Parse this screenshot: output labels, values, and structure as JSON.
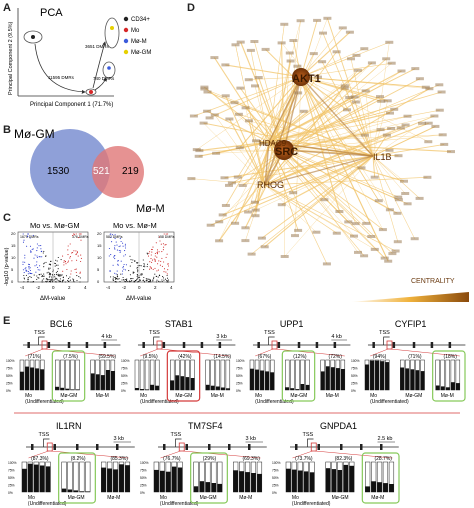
{
  "panel_letters": {
    "a": "A",
    "b": "B",
    "c": "C",
    "d": "D",
    "e": "E"
  },
  "pca": {
    "title": "PCA",
    "xlabel": "Principal Component 1 (71.7%)",
    "ylabel": "Principal Component 2 (9.5%)",
    "legend": [
      {
        "label": "CD34+",
        "color": "#222222"
      },
      {
        "label": "Mo",
        "color": "#d62728"
      },
      {
        "label": "Mø-M",
        "color": "#3b5bdb"
      },
      {
        "label": "Mø-GM",
        "color": "#e6d000"
      }
    ],
    "arrow_labels": [
      "11595 DMRs",
      "3651 DMRs",
      "740 DMRs"
    ]
  },
  "venn": {
    "left_label": "Mø-GM",
    "right_label": "Mø-M",
    "left_only": "1530",
    "overlap": "521",
    "right_only": "219",
    "left_color": "#7b8fd1",
    "right_color": "#e07777"
  },
  "volcano": {
    "plots": [
      {
        "title": "Mo vs. Mø-GM",
        "left_count": "1675 DMRs",
        "right_count": "376 DMRs"
      },
      {
        "title": "Mo vs. Mø-M",
        "left_count": "582 DMRs",
        "right_count": "158 DMRs"
      }
    ],
    "xlabel": "ΔM-value",
    "ylabel": "-log10 (p-value)",
    "xticks": [
      "-4",
      "-2",
      "0",
      "2",
      "4"
    ],
    "yticks": [
      "0",
      "5",
      "10",
      "15",
      "20"
    ]
  },
  "network": {
    "hubs": [
      {
        "label": "AKT1"
      },
      {
        "label": "SRC"
      },
      {
        "label": "HDAC9"
      },
      {
        "label": "RHOG"
      },
      {
        "label": "IL1B"
      }
    ],
    "centrality_label": "CENTRALITY",
    "edge_color": "#f2c46a"
  },
  "genes": {
    "row1": [
      {
        "name": "BCL6",
        "scale": "4 kb",
        "tss": "TSS",
        "values": [
          "(71%)",
          "(7.5%)",
          "(59.5%)"
        ],
        "highlight": 1,
        "hl_color": "#86c95a"
      },
      {
        "name": "STAB1",
        "scale": "3 kb",
        "tss": "TSS",
        "values": [
          "(9.5%)",
          "(42%)",
          "(14.5%)"
        ],
        "highlight": 1,
        "hl_color": "#d43a3a"
      },
      {
        "name": "UPP1",
        "scale": "4 kb",
        "tss": "TSS",
        "values": [
          "(67%)",
          "(12%)",
          "(72%)"
        ],
        "highlight": 1,
        "hl_color": "#86c95a"
      },
      {
        "name": "CYFIP1",
        "scale": "",
        "tss": "TSS",
        "values": [
          "(94%)",
          "(71%)",
          "(18%)"
        ],
        "highlight": 2,
        "hl_color": "#86c95a"
      }
    ],
    "row2": [
      {
        "name": "IL1RN",
        "scale": "3 kb",
        "tss": "TSS",
        "values": [
          "(87.3%)",
          "(8.2%)",
          "(85.3%)"
        ],
        "highlight": 1,
        "hl_color": "#86c95a"
      },
      {
        "name": "TM7SF4",
        "scale": "3 kb",
        "tss": "TSS",
        "values": [
          "(76.7%)",
          "(29%)",
          "(69.3%)"
        ],
        "highlight": 1,
        "hl_color": "#86c95a"
      },
      {
        "name": "GNPDA1",
        "scale": "2.5 kb",
        "tss": "TSS",
        "values": [
          "(73.7%)",
          "(82.3%)",
          "(28.7%)"
        ],
        "highlight": 2,
        "hl_color": "#86c95a"
      }
    ],
    "group_labels": [
      "Mo\n(Undifferentiated)",
      "Mø-GM",
      "Mø-M"
    ],
    "yticks": [
      "100%",
      "75%",
      "50%",
      "25%",
      "0%"
    ]
  }
}
